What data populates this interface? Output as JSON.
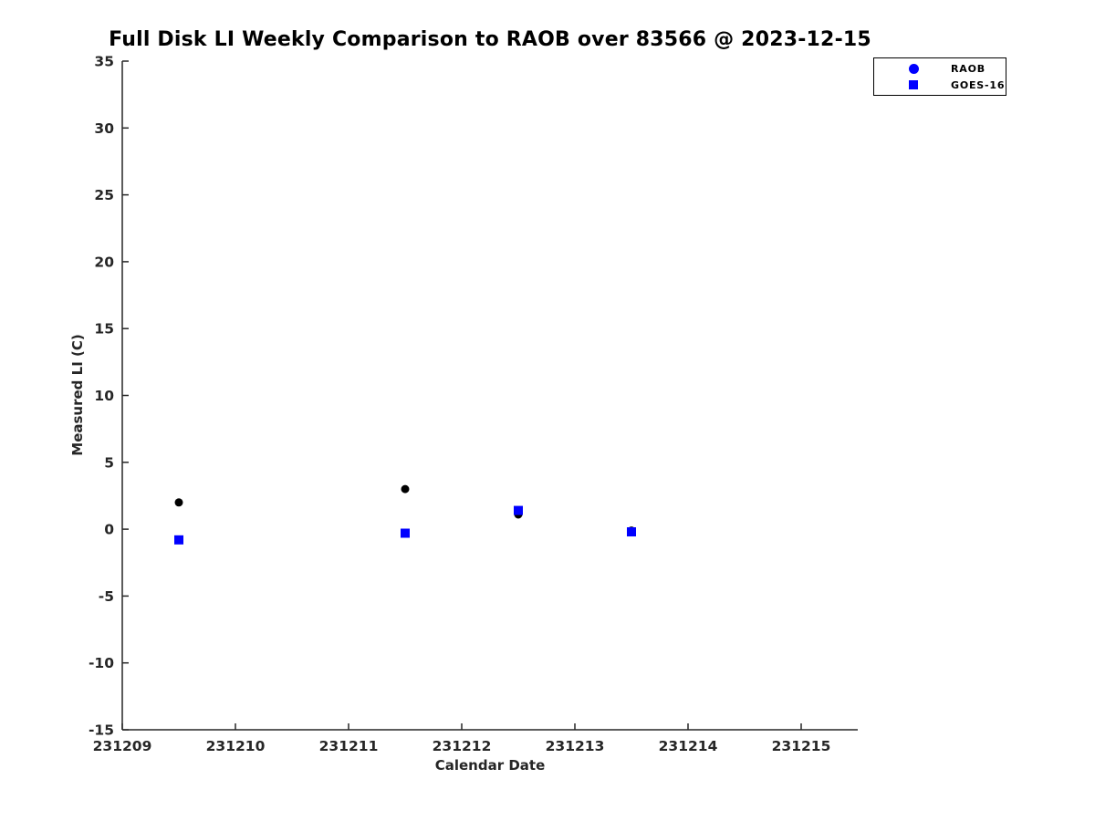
{
  "title": "Full Disk LI Weekly Comparison to RAOB over 83566 @ 2023-12-15",
  "axes": {
    "xlabel": "Calendar Date",
    "ylabel": "Measured LI (C)"
  },
  "legend": {
    "items": [
      {
        "label": "RAOB",
        "marker": "circle",
        "color": "#0000ff"
      },
      {
        "label": "GOES-16",
        "marker": "square",
        "color": "#0000ff"
      }
    ]
  },
  "colors": {
    "axis": "#262626",
    "raob_plot_marker": "#000000",
    "goes16_plot_marker": "#0000ff",
    "background": "#ffffff"
  },
  "chart_data": {
    "type": "scatter",
    "title": "Full Disk LI Weekly Comparison to RAOB over 83566 @ 2023-12-15",
    "xlabel": "Calendar Date",
    "ylabel": "Measured LI (C)",
    "xlim": [
      231209,
      231215.5
    ],
    "ylim": [
      -15,
      35
    ],
    "x_ticks": [
      231209,
      231210,
      231211,
      231212,
      231213,
      231214,
      231215
    ],
    "y_ticks": [
      35,
      30,
      25,
      20,
      15,
      10,
      5,
      0,
      -5,
      -10,
      -15
    ],
    "grid": false,
    "legend_position": "top-right",
    "series": [
      {
        "name": "RAOB",
        "marker": "circle",
        "color": "#000000",
        "x": [
          231209.5,
          231211.5,
          231212.5,
          231213.5
        ],
        "y": [
          2.0,
          3.0,
          1.1,
          -0.1
        ]
      },
      {
        "name": "GOES-16",
        "marker": "square",
        "color": "#0000ff",
        "x": [
          231209.5,
          231211.5,
          231212.5,
          231213.5
        ],
        "y": [
          -0.8,
          -0.3,
          1.4,
          -0.2
        ]
      }
    ]
  }
}
